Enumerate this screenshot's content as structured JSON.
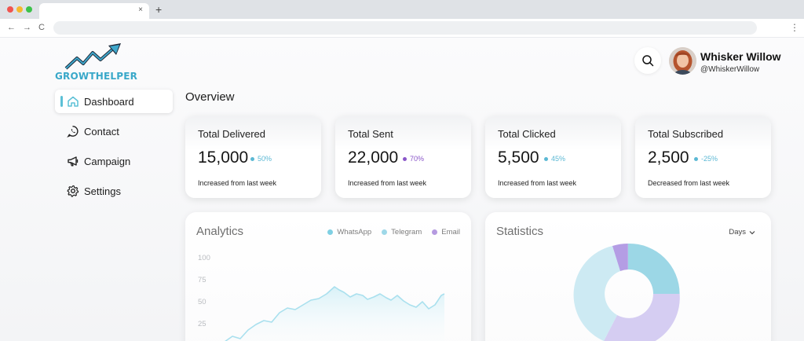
{
  "browser": {
    "tab_close": "×",
    "new_tab": "+",
    "back": "←",
    "forward": "→",
    "reload": "C",
    "menu": "⋮"
  },
  "brand": {
    "logo_text": "GROWTHELPER",
    "accent": "#39a8c9"
  },
  "sidebar": {
    "items": [
      {
        "label": "Dashboard",
        "icon": "home-icon",
        "active": true
      },
      {
        "label": "Contact",
        "icon": "whatsapp-icon"
      },
      {
        "label": "Campaign",
        "icon": "megaphone-icon"
      },
      {
        "label": "Settings",
        "icon": "gear-icon"
      }
    ]
  },
  "header": {
    "user_name": "Whisker Willow",
    "user_handle": "@WhiskerWillow"
  },
  "overview": {
    "title": "Overview",
    "cards": [
      {
        "title": "Total Delivered",
        "value": "15,000",
        "delta": "50%",
        "delta_color": "#5bb8d4",
        "note": "Increased from last week"
      },
      {
        "title": "Total Sent",
        "value": "22,000",
        "delta": "70%",
        "delta_color": "#8a56c9",
        "note": "Increased from last week"
      },
      {
        "title": "Total Clicked",
        "value": "5,500",
        "delta": "45%",
        "delta_color": "#5bb8d4",
        "note": "Increased from last week"
      },
      {
        "title": "Total Subscribed",
        "value": "2,500",
        "delta": "-25%",
        "delta_color": "#5bb8d4",
        "note": "Decreased from last week"
      }
    ]
  },
  "analytics": {
    "title": "Analytics",
    "legend": [
      {
        "label": "WhatsApp",
        "color": "#7fd0e3"
      },
      {
        "label": "Telegram",
        "color": "#9ed8e8"
      },
      {
        "label": "Email",
        "color": "#b59ae0"
      }
    ],
    "y_ticks": [
      "100",
      "75",
      "50",
      "25"
    ]
  },
  "statistics": {
    "title": "Statistics",
    "period": "Days"
  }
}
